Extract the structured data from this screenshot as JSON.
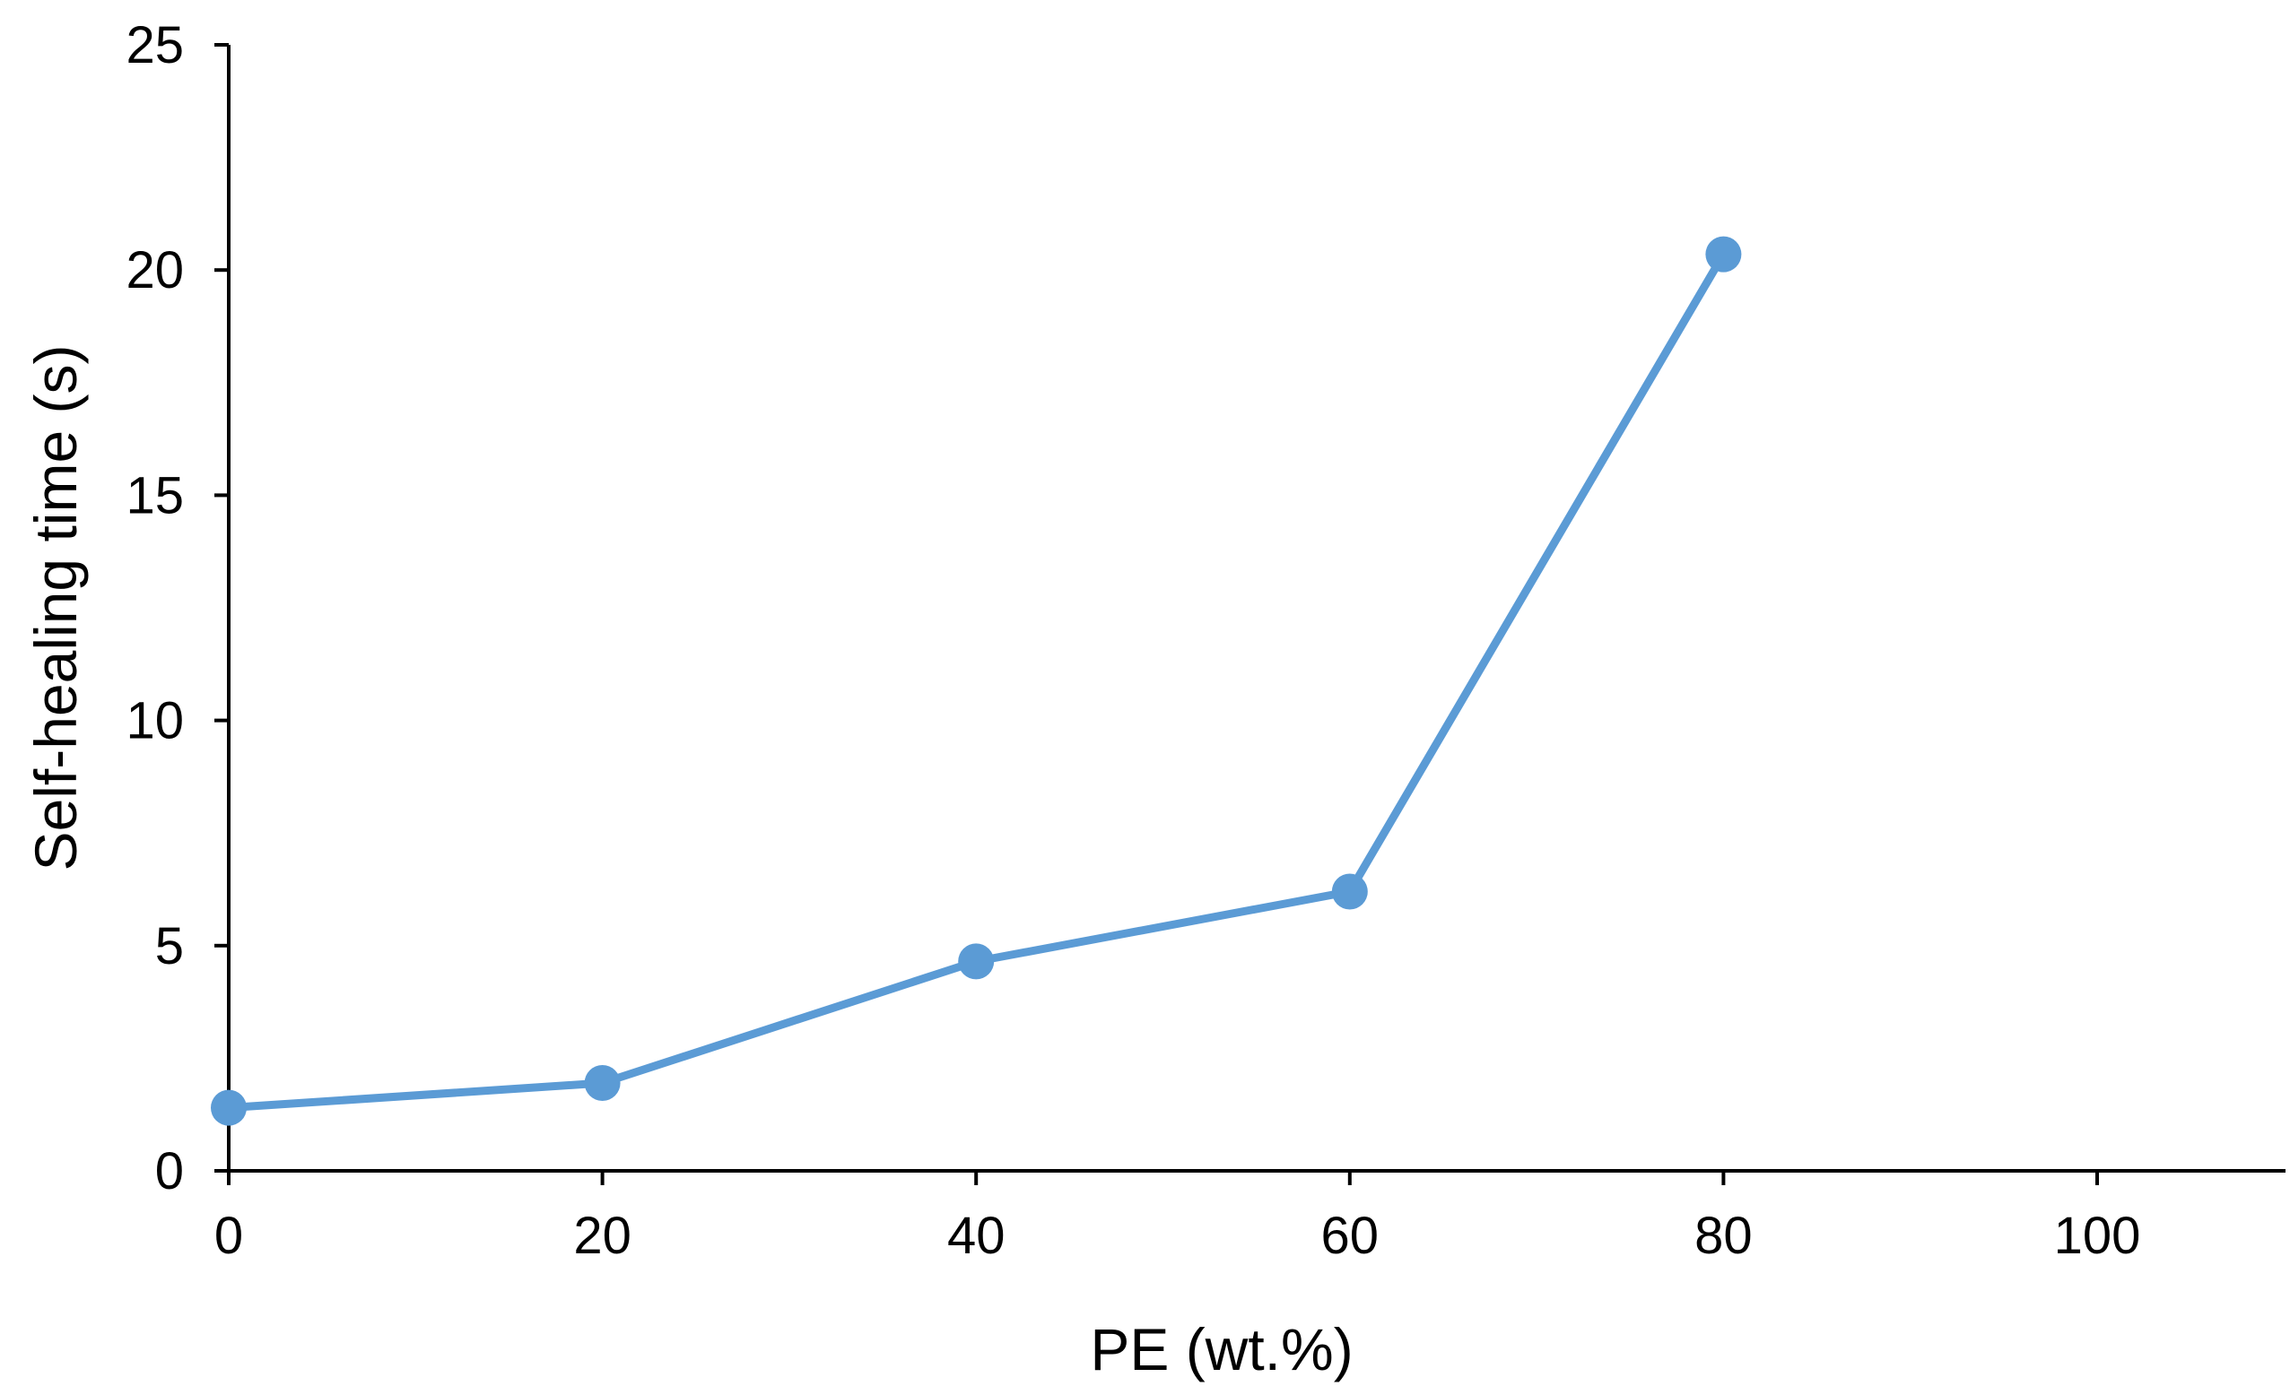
{
  "chart_data": {
    "type": "line",
    "title": "",
    "xlabel": "PE (wt.%)",
    "ylabel": "Self-healing  time (s)",
    "xlim": [
      0,
      110
    ],
    "ylim": [
      0,
      25
    ],
    "x_ticks": [
      "0",
      "20",
      "40",
      "60",
      "80",
      "100"
    ],
    "y_ticks": [
      "0",
      "5",
      "10",
      "15",
      "20",
      "25"
    ],
    "grid": false,
    "legend": "none",
    "series": [
      {
        "name": "Self-healing time",
        "color": "#5b9bd5",
        "x": [
          0,
          20,
          40,
          60,
          80
        ],
        "values": [
          1.4,
          1.95,
          4.65,
          6.2,
          20.35
        ]
      }
    ]
  }
}
